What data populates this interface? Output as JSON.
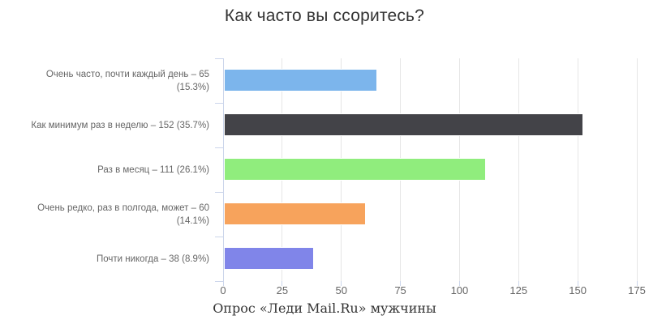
{
  "chart_data": {
    "type": "bar",
    "orientation": "horizontal",
    "title": "Как часто вы ссоритесь?",
    "caption": "Опрос «Леди Mail.Ru» мужчины",
    "categories": [
      "Очень часто, почти каждый день – 65 (15.3%)",
      "Как минимум раз в неделю – 152 (35.7%)",
      "Раз в месяц – 111 (26.1%)",
      "Очень редко, раз в полгода, может – 60 (14.1%)",
      "Почти никогда – 38 (8.9%)"
    ],
    "values": [
      65,
      152,
      111,
      60,
      38
    ],
    "percentages": [
      15.3,
      35.7,
      26.1,
      14.1,
      8.9
    ],
    "bar_colors": [
      "#7cb5ec",
      "#434348",
      "#90ed7d",
      "#f7a35c",
      "#8085e9"
    ],
    "xlim": [
      0,
      175
    ],
    "x_ticks": [
      0,
      25,
      50,
      75,
      100,
      125,
      150,
      175
    ],
    "grid": true,
    "legend": false
  },
  "style_colors": {
    "axis_line": "#ccd6eb",
    "gridline": "#e6e6e6",
    "title_text": "#333333",
    "label_text": "#666666",
    "background": "#ffffff"
  }
}
